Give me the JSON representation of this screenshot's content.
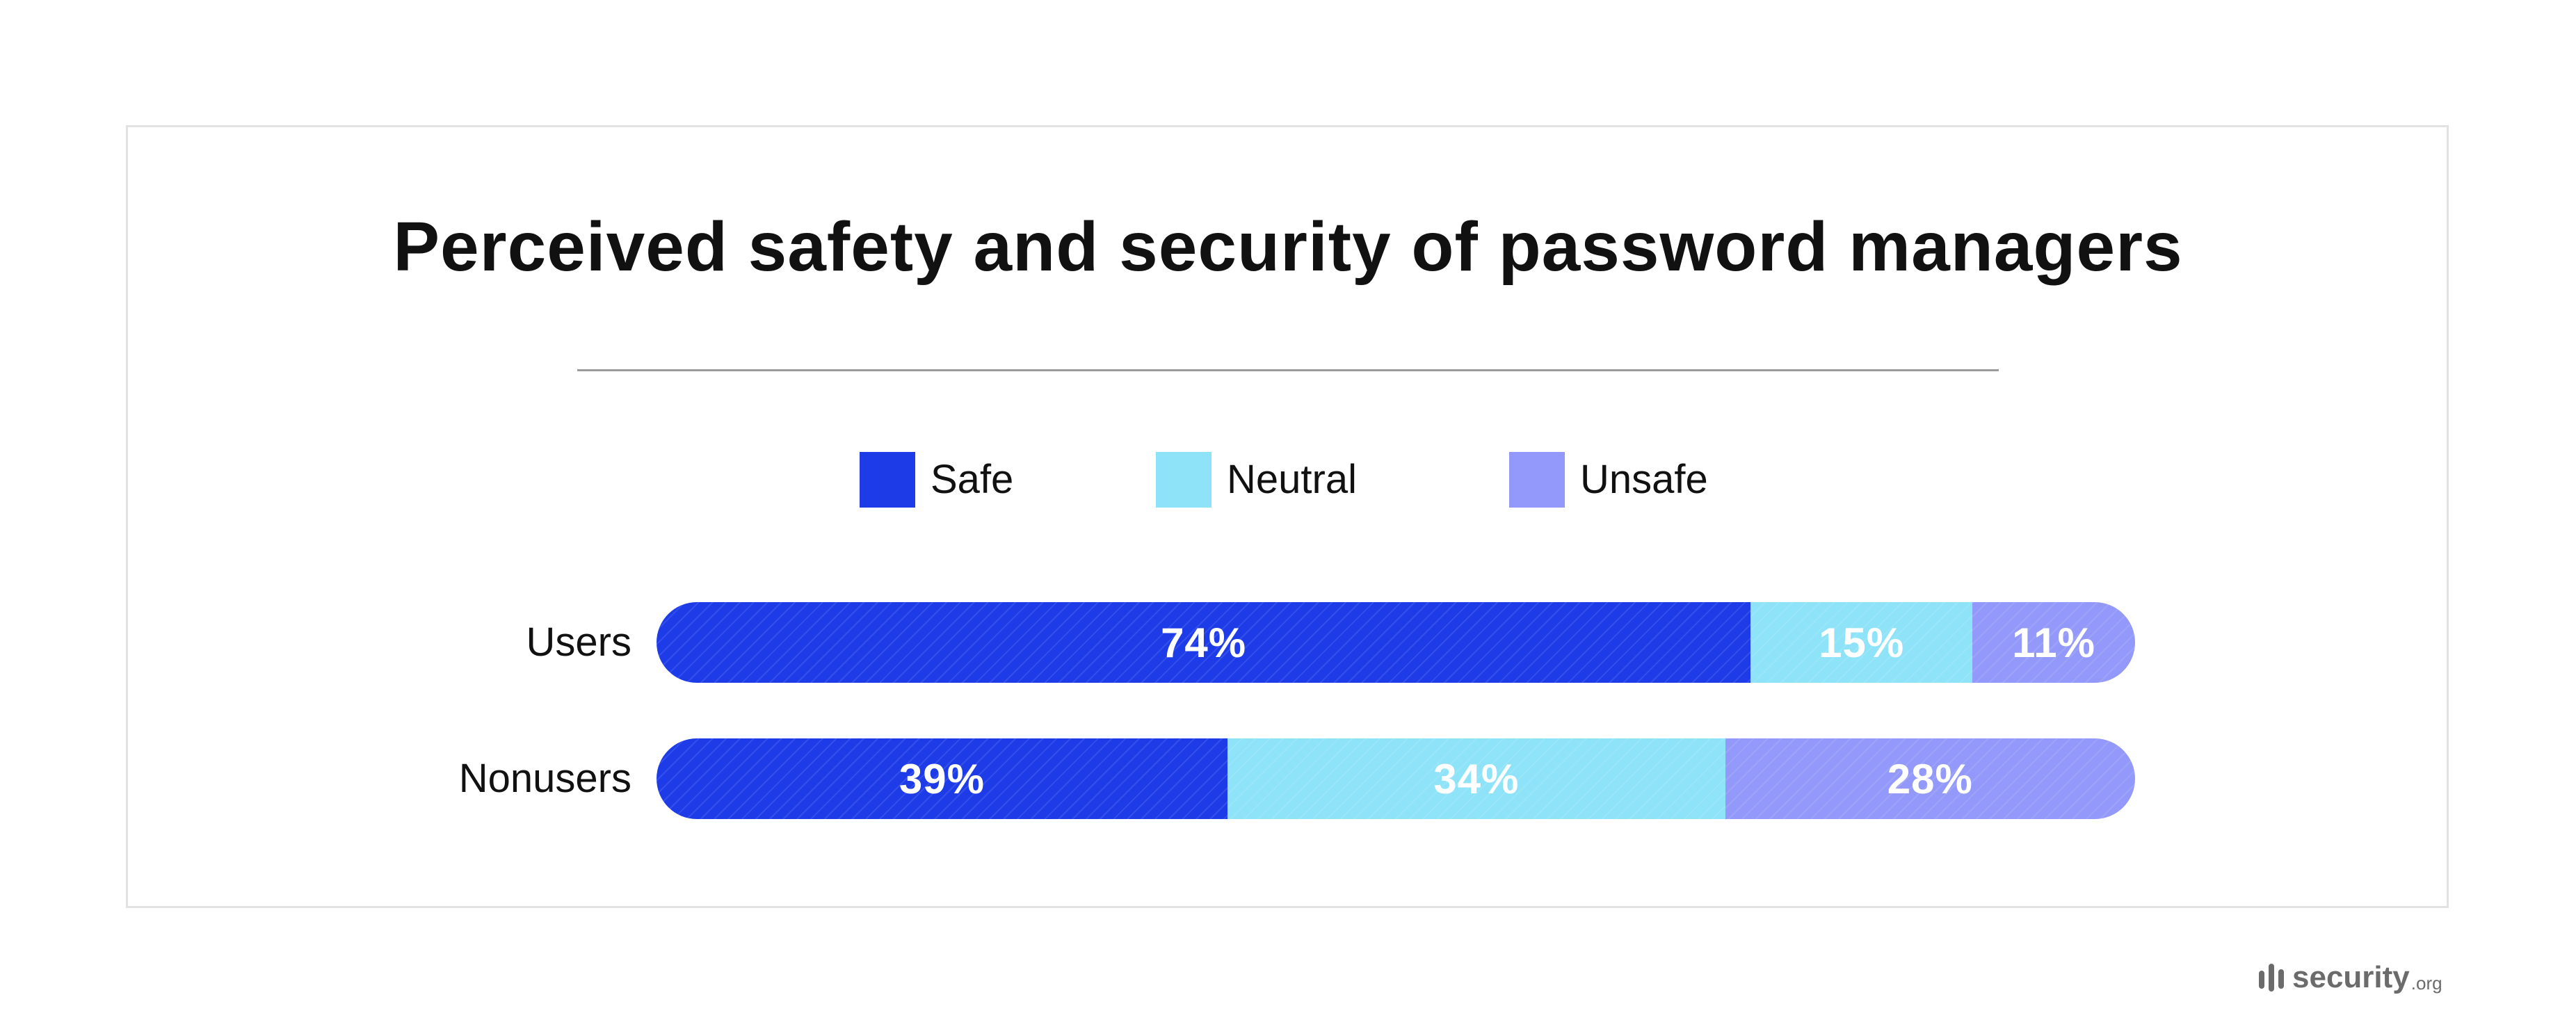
{
  "chart_data": {
    "type": "bar",
    "orientation": "horizontal",
    "stacked": true,
    "title": "Perceived safety and security of password managers",
    "categories": [
      "Users",
      "Nonusers"
    ],
    "series": [
      {
        "name": "Safe",
        "values": [
          74,
          39
        ],
        "labels": [
          "74%",
          "39%"
        ],
        "color": "#1e3be8"
      },
      {
        "name": "Neutral",
        "values": [
          15,
          34
        ],
        "labels": [
          "15%",
          "34%"
        ],
        "color": "#8ee3f8"
      },
      {
        "name": "Unsafe",
        "values": [
          11,
          28
        ],
        "labels": [
          "11%",
          "28%"
        ],
        "color": "#9399fa"
      }
    ],
    "legend_position": "top-center",
    "grid": false
  },
  "brand": {
    "name": "security",
    "tld": ".org",
    "color": "#6b6b6b"
  },
  "colors": {
    "background": "#ffffff",
    "card_border": "#e2e2e2",
    "divider": "#9a9a9a",
    "text": "#111111"
  }
}
